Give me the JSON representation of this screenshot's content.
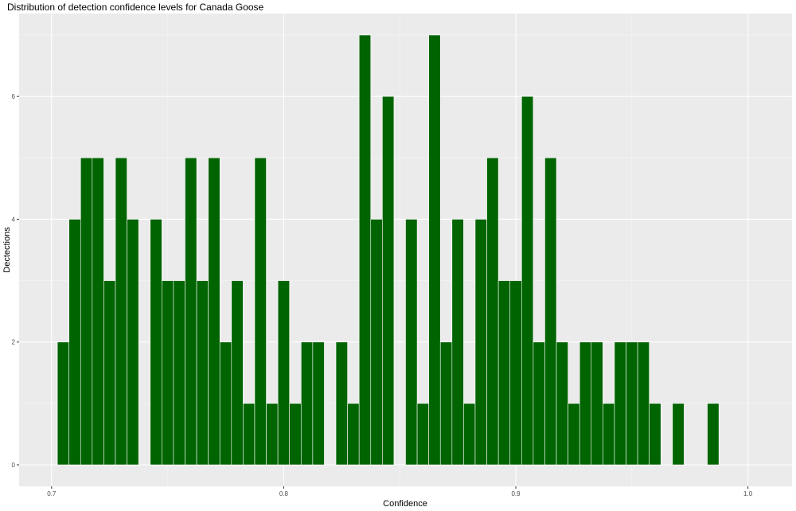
{
  "chart_data": {
    "type": "bar",
    "title": "Distribution of detection confidence levels for Canada Goose",
    "xlabel": "Confidence",
    "ylabel": "Dectections",
    "xlim": [
      0.686,
      1.019
    ],
    "ylim": [
      -0.35,
      7.35
    ],
    "x_ticks": [
      0.7,
      0.8,
      0.9,
      1.0
    ],
    "x_tick_labels": [
      "0.7",
      "0.8",
      "0.9",
      "1.0"
    ],
    "y_ticks": [
      0,
      2,
      4,
      6
    ],
    "y_tick_labels": [
      "0",
      "2",
      "4",
      "6"
    ],
    "grid": true,
    "bin_width": 0.005,
    "bin_start": 0.7025,
    "values": [
      2,
      4,
      5,
      5,
      3,
      5,
      4,
      0,
      4,
      3,
      3,
      5,
      3,
      5,
      2,
      3,
      1,
      5,
      1,
      3,
      1,
      2,
      2,
      0,
      2,
      1,
      7,
      4,
      6,
      0,
      4,
      1,
      7,
      2,
      4,
      1,
      4,
      5,
      3,
      3,
      6,
      2,
      5,
      2,
      1,
      2,
      2,
      1,
      2,
      2,
      2,
      1,
      0,
      1,
      0,
      0,
      1
    ],
    "colors": {
      "bar_fill": "#006400",
      "bar_outline": "#ffffff",
      "panel": "#ebebeb",
      "grid_major": "#ffffff",
      "grid_minor": "#f5f5f5",
      "text": "#000000",
      "tick_text": "#4d4d4d"
    }
  }
}
